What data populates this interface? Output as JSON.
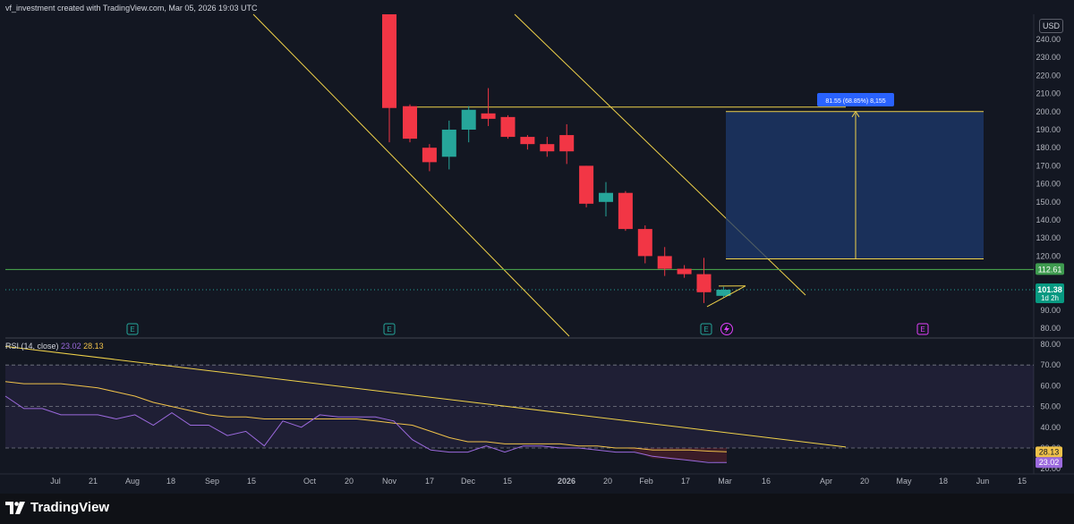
{
  "header": {
    "title": "vf_investment created with TradingView.com, Mar 05, 2026 19:03 UTC"
  },
  "currency": "USD",
  "branding": {
    "logo_text": "TradingView"
  },
  "colors": {
    "up": "#26a69a",
    "down": "#f23645",
    "channel": "#f0d24a",
    "hline": "#4caf50",
    "target_box": "#1e3a6e",
    "rsi": "#9c6ade",
    "rsi_ma": "#f0c24a"
  },
  "chart_data": [
    {
      "type": "candlestick",
      "title": "",
      "ylim": [
        80,
        245
      ],
      "y_ticks": [
        "240.00",
        "230.00",
        "220.00",
        "210.00",
        "200.00",
        "190.00",
        "180.00",
        "170.00",
        "160.00",
        "150.00",
        "140.00",
        "130.00",
        "120.00",
        "110.00",
        "100.00",
        "90.00",
        "80.00"
      ],
      "x_ticks": [
        "Jul",
        "21",
        "Aug",
        "18",
        "Sep",
        "15",
        "Oct",
        "20",
        "Nov",
        "17",
        "Dec",
        "15",
        "2026",
        "20",
        "Feb",
        "17",
        "Mar",
        "16",
        "Apr",
        "20",
        "May",
        "18",
        "Jun",
        "15"
      ],
      "x_tick_bold": [
        "2026"
      ],
      "candles": [
        {
          "week": "Oct 27",
          "o": 260,
          "h": 265,
          "l": 183,
          "c": 202
        },
        {
          "week": "Nov 10",
          "o": 203,
          "h": 204,
          "l": 183,
          "c": 185
        },
        {
          "week": "Nov 17",
          "o": 180,
          "h": 182,
          "l": 167,
          "c": 172
        },
        {
          "week": "Nov 24",
          "o": 175,
          "h": 195,
          "l": 168,
          "c": 190
        },
        {
          "week": "Dec 1",
          "o": 190,
          "h": 203,
          "l": 183,
          "c": 201
        },
        {
          "week": "Dec 8",
          "o": 199,
          "h": 213,
          "l": 192,
          "c": 196
        },
        {
          "week": "Dec 15",
          "o": 197,
          "h": 198,
          "l": 185,
          "c": 186
        },
        {
          "week": "Dec 22",
          "o": 186,
          "h": 187,
          "l": 179,
          "c": 182
        },
        {
          "week": "Dec 29",
          "o": 182,
          "h": 186,
          "l": 175,
          "c": 178
        },
        {
          "week": "Jan 5",
          "o": 187,
          "h": 193,
          "l": 171,
          "c": 178
        },
        {
          "week": "Jan 12",
          "o": 170,
          "h": 170,
          "l": 147,
          "c": 149
        },
        {
          "week": "Jan 19",
          "o": 150,
          "h": 161,
          "l": 142,
          "c": 155
        },
        {
          "week": "Jan 26",
          "o": 155,
          "h": 156,
          "l": 134,
          "c": 135
        },
        {
          "week": "Feb 2",
          "o": 135,
          "h": 137,
          "l": 116,
          "c": 120
        },
        {
          "week": "Feb 9",
          "o": 120,
          "h": 125,
          "l": 109,
          "c": 113
        },
        {
          "week": "Feb 16",
          "o": 113,
          "h": 115,
          "l": 108,
          "c": 110
        },
        {
          "week": "Feb 23",
          "o": 110,
          "h": 119,
          "l": 94,
          "c": 100
        },
        {
          "week": "Mar 2",
          "o": 98,
          "h": 103,
          "l": 97,
          "c": 101.38
        }
      ],
      "hline_value": 112.61,
      "last_price": "101.38",
      "last_price_countdown": "1d 2h",
      "hline_label": "112.61",
      "target": {
        "label": "81.55 (68.85%) 8,155",
        "from": 118.45,
        "to": 200
      },
      "event_markers": [
        "E",
        "E",
        "E",
        "E"
      ]
    },
    {
      "type": "line",
      "title": "RSI (14, close)",
      "ylim": [
        15,
        80
      ],
      "y_ticks": [
        "80.00",
        "70.00",
        "60.00",
        "50.00",
        "40.00",
        "30.00",
        "20.00"
      ],
      "bands": [
        30,
        70
      ],
      "midline": 50,
      "series": [
        {
          "name": "RSI",
          "values": [
            55,
            49,
            49,
            46,
            46,
            46,
            44,
            46,
            41,
            47,
            41,
            41,
            36,
            38,
            31,
            43,
            40,
            46,
            45,
            45,
            45,
            43,
            34,
            29,
            28,
            28,
            31,
            28,
            31,
            31,
            30,
            30,
            29,
            28,
            28,
            26,
            25,
            24,
            23,
            23.02
          ]
        },
        {
          "name": "RSI MA",
          "values": [
            62,
            61,
            61,
            61,
            60,
            59,
            57,
            55,
            52,
            50,
            48,
            46,
            45,
            45,
            44,
            44,
            44,
            44,
            44,
            44,
            43,
            42,
            41,
            38,
            35,
            33,
            33,
            32,
            32,
            32,
            32,
            31,
            31,
            30,
            30,
            29,
            29,
            29,
            28.5,
            28.13
          ]
        }
      ],
      "rsi_label": "23.02",
      "ma_label": "28.13",
      "legend_rsi": "23.02",
      "legend_ma": "28.13"
    }
  ]
}
